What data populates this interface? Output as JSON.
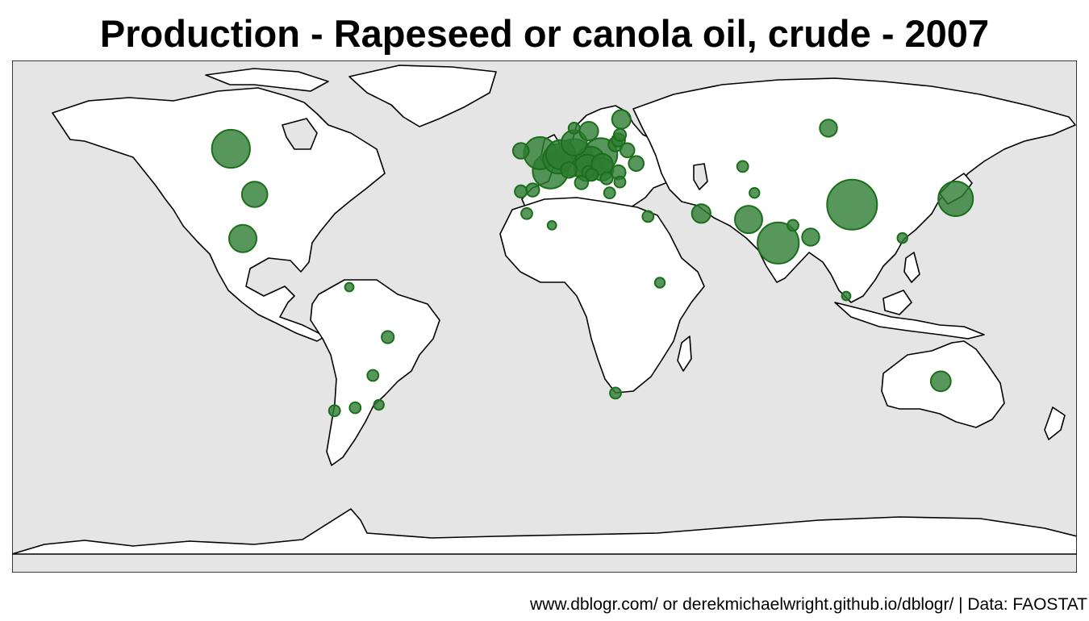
{
  "title": "Production - Rapeseed or canola oil, crude - 2007",
  "caption": "www.dblogr.com/ or derekmichaelwright.github.io/dblogr/ | Data: FAOSTAT",
  "colors": {
    "ocean": "#e5e5e5",
    "land": "#ffffff",
    "border": "#000000",
    "bubble_fill": "#2e7d32",
    "bubble_stroke": "#1b6e1b"
  },
  "map_data": {
    "type": "bubble-map",
    "projection": "equirectangular",
    "lon_range": [
      -180,
      180
    ],
    "lat_range": [
      -90,
      84
    ],
    "points": [
      {
        "region": "China",
        "lon": 104,
        "lat": 35,
        "size": 1.0
      },
      {
        "region": "India",
        "lon": 79,
        "lat": 22,
        "size": 0.68
      },
      {
        "region": "Canada",
        "lon": -106,
        "lat": 54,
        "size": 0.58
      },
      {
        "region": "Germany",
        "lon": 10,
        "lat": 51,
        "size": 0.55
      },
      {
        "region": "France",
        "lon": 2,
        "lat": 46.5,
        "size": 0.5
      },
      {
        "region": "United Kingdom",
        "lon": -1.5,
        "lat": 52.5,
        "size": 0.42
      },
      {
        "region": "Japan",
        "lon": 139,
        "lat": 37,
        "size": 0.48
      },
      {
        "region": "Poland",
        "lon": 19,
        "lat": 52,
        "size": 0.44
      },
      {
        "region": "Belgium",
        "lon": 4.5,
        "lat": 50.6,
        "size": 0.35
      },
      {
        "region": "Netherlands",
        "lon": 5.5,
        "lat": 52,
        "size": 0.35
      },
      {
        "region": "Czechia",
        "lon": 15.5,
        "lat": 49.8,
        "size": 0.34
      },
      {
        "region": "Austria",
        "lon": 14.5,
        "lat": 47.5,
        "size": 0.28
      },
      {
        "region": "Denmark",
        "lon": 10,
        "lat": 56,
        "size": 0.26
      },
      {
        "region": "Pakistan",
        "lon": 69,
        "lat": 30,
        "size": 0.3
      },
      {
        "region": "Mexico",
        "lon": -102,
        "lat": 23.5,
        "size": 0.3
      },
      {
        "region": "United States of America",
        "lon": -98,
        "lat": 38.5,
        "size": 0.26
      },
      {
        "region": "Australia",
        "lon": 134,
        "lat": -25,
        "size": 0.16
      },
      {
        "region": "Hungary",
        "lon": 19.5,
        "lat": 47,
        "size": 0.2
      },
      {
        "region": "Slovakia",
        "lon": 19.5,
        "lat": 48.7,
        "size": 0.18
      },
      {
        "region": "Sweden",
        "lon": 15,
        "lat": 60,
        "size": 0.14
      },
      {
        "region": "Finland",
        "lon": 26,
        "lat": 64,
        "size": 0.14
      },
      {
        "region": "Russian Federation",
        "lon": 96,
        "lat": 61,
        "size": 0.12
      },
      {
        "region": "Iran",
        "lon": 53,
        "lat": 32,
        "size": 0.14
      },
      {
        "region": "Ireland",
        "lon": -8,
        "lat": 53.3,
        "size": 0.1
      },
      {
        "region": "Bangladesh",
        "lon": 90,
        "lat": 24,
        "size": 0.12
      },
      {
        "region": "Lithuania",
        "lon": 24,
        "lat": 55.5,
        "size": 0.08
      },
      {
        "region": "Latvia",
        "lon": 25,
        "lat": 57,
        "size": 0.07
      },
      {
        "region": "Ukraine",
        "lon": 31,
        "lat": 49,
        "size": 0.09
      },
      {
        "region": "Romania",
        "lon": 25,
        "lat": 46,
        "size": 0.08
      },
      {
        "region": "Italy",
        "lon": 12.5,
        "lat": 42.5,
        "size": 0.07
      },
      {
        "region": "Spain",
        "lon": -4,
        "lat": 40,
        "size": 0.07
      },
      {
        "region": "Portugal",
        "lon": -8,
        "lat": 39.5,
        "size": 0.06
      },
      {
        "region": "Belarus",
        "lon": 28,
        "lat": 53.5,
        "size": 0.08
      },
      {
        "region": "Serbia",
        "lon": 21,
        "lat": 44,
        "size": 0.06
      },
      {
        "region": "Bulgaria",
        "lon": 25.5,
        "lat": 42.7,
        "size": 0.05
      },
      {
        "region": "Greece",
        "lon": 22,
        "lat": 39,
        "size": 0.05
      },
      {
        "region": "Israel",
        "lon": 35,
        "lat": 31,
        "size": 0.05
      },
      {
        "region": "Kazakhstan",
        "lon": 67,
        "lat": 48,
        "size": 0.05
      },
      {
        "region": "Chile",
        "lon": -71,
        "lat": -35,
        "size": 0.05
      },
      {
        "region": "Argentina",
        "lon": -64,
        "lat": -34,
        "size": 0.05
      },
      {
        "region": "Brazil",
        "lon": -53,
        "lat": -10,
        "size": 0.06
      },
      {
        "region": "Paraguay",
        "lon": -58,
        "lat": -23,
        "size": 0.05
      },
      {
        "region": "Uruguay",
        "lon": -56,
        "lat": -33,
        "size": 0.04
      },
      {
        "region": "South Africa",
        "lon": 24,
        "lat": -29,
        "size": 0.05
      },
      {
        "region": "Ethiopia",
        "lon": 39,
        "lat": 8.5,
        "size": 0.04
      },
      {
        "region": "Algeria",
        "lon": 2.5,
        "lat": 28,
        "size": 0.03
      },
      {
        "region": "Venezuela",
        "lon": -66,
        "lat": 7,
        "size": 0.03
      },
      {
        "region": "Morocco",
        "lon": -6,
        "lat": 32,
        "size": 0.05
      },
      {
        "region": "Nepal",
        "lon": 84,
        "lat": 28,
        "size": 0.05
      },
      {
        "region": "Taiwan",
        "lon": 121,
        "lat": 23.7,
        "size": 0.04
      },
      {
        "region": "Tajikistan",
        "lon": 71,
        "lat": 39,
        "size": 0.04
      },
      {
        "region": "Malaysia",
        "lon": 102,
        "lat": 4,
        "size": 0.03
      },
      {
        "region": "Estonia",
        "lon": 25.5,
        "lat": 58.7,
        "size": 0.06
      },
      {
        "region": "Norway",
        "lon": 10,
        "lat": 61,
        "size": 0.05
      },
      {
        "region": "Switzerland",
        "lon": 8.2,
        "lat": 46.8,
        "size": 0.1
      },
      {
        "region": "Slovenia",
        "lon": 14.8,
        "lat": 46.1,
        "size": 0.06
      },
      {
        "region": "Croatia",
        "lon": 16,
        "lat": 45.2,
        "size": 0.06
      }
    ]
  }
}
